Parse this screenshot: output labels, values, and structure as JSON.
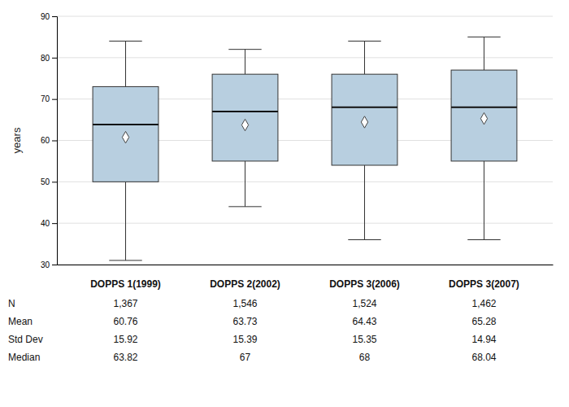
{
  "chart_data": {
    "type": "box",
    "ylabel": "years",
    "ylim": [
      30,
      90
    ],
    "yticks": [
      30,
      40,
      50,
      60,
      70,
      80,
      90
    ],
    "grid": true,
    "color": "#b8cfe0",
    "categories": [
      "DOPPS 1(1999)",
      "DOPPS 2(2002)",
      "DOPPS 3(2006)",
      "DOPPS 3(2007)"
    ],
    "boxes": [
      {
        "whisker_low": 31,
        "q1": 50,
        "median": 63.82,
        "q3": 73,
        "whisker_high": 84,
        "mean": 60.76
      },
      {
        "whisker_low": 44,
        "q1": 55,
        "median": 67,
        "q3": 76,
        "whisker_high": 82,
        "mean": 63.73
      },
      {
        "whisker_low": 36,
        "q1": 54,
        "median": 68,
        "q3": 76,
        "whisker_high": 84,
        "mean": 64.43
      },
      {
        "whisker_low": 36,
        "q1": 55,
        "median": 68.04,
        "q3": 77,
        "whisker_high": 85,
        "mean": 65.28
      }
    ],
    "table": {
      "row_labels": [
        "N",
        "Mean",
        "Std Dev",
        "Median"
      ],
      "cells": [
        [
          "1,367",
          "60.76",
          "15.92",
          "63.82"
        ],
        [
          "1,546",
          "63.73",
          "15.39",
          "67"
        ],
        [
          "1,524",
          "64.43",
          "15.35",
          "68"
        ],
        [
          "1,462",
          "65.28",
          "14.94",
          "68.04"
        ]
      ]
    }
  }
}
